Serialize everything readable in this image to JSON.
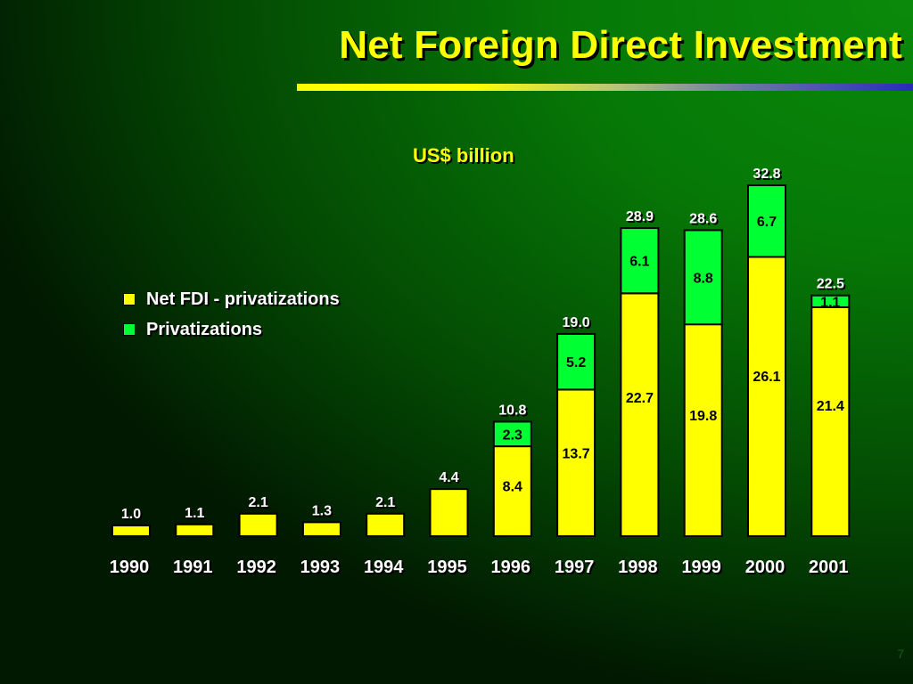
{
  "title": "Net Foreign Direct Investment",
  "page_number": "7",
  "colors": {
    "net": "#ffff00",
    "priv": "#00ff33",
    "outline": "#000000",
    "text_yellow": "#ffff00"
  },
  "chart_data": {
    "type": "bar",
    "stacked": true,
    "title": "Net Foreign Direct Investment",
    "subtitle": "US$ billion",
    "categories": [
      "1990",
      "1991",
      "1992",
      "1993",
      "1994",
      "1995",
      "1996",
      "1997",
      "1998",
      "1999",
      "2000",
      "2001"
    ],
    "series": [
      {
        "name": "Net FDI - privatizations",
        "values": [
          1.0,
          1.1,
          2.1,
          1.3,
          2.1,
          4.4,
          8.4,
          13.7,
          22.7,
          19.8,
          26.1,
          21.4
        ]
      },
      {
        "name": "Privatizations",
        "values": [
          0,
          0,
          0,
          0,
          0,
          0,
          2.3,
          5.2,
          6.1,
          8.8,
          6.7,
          1.1
        ]
      }
    ],
    "segment_labels": {
      "net": [
        "",
        "",
        "",
        "",
        "",
        "",
        "8.4",
        "13.7",
        "22.7",
        "19.8",
        "26.1",
        "21.4"
      ],
      "priv": [
        "",
        "",
        "",
        "",
        "",
        "",
        "2.3",
        "5.2",
        "6.1",
        "8.8",
        "6.7",
        "1.1"
      ]
    },
    "totals": [
      "1.0",
      "1.1",
      "2.1",
      "1.3",
      "2.1",
      "4.4",
      "10.8",
      "19.0",
      "28.9",
      "28.6",
      "32.8",
      "22.5"
    ],
    "ylim": [
      0,
      32.8
    ],
    "grid": false,
    "legend_position": "left"
  }
}
